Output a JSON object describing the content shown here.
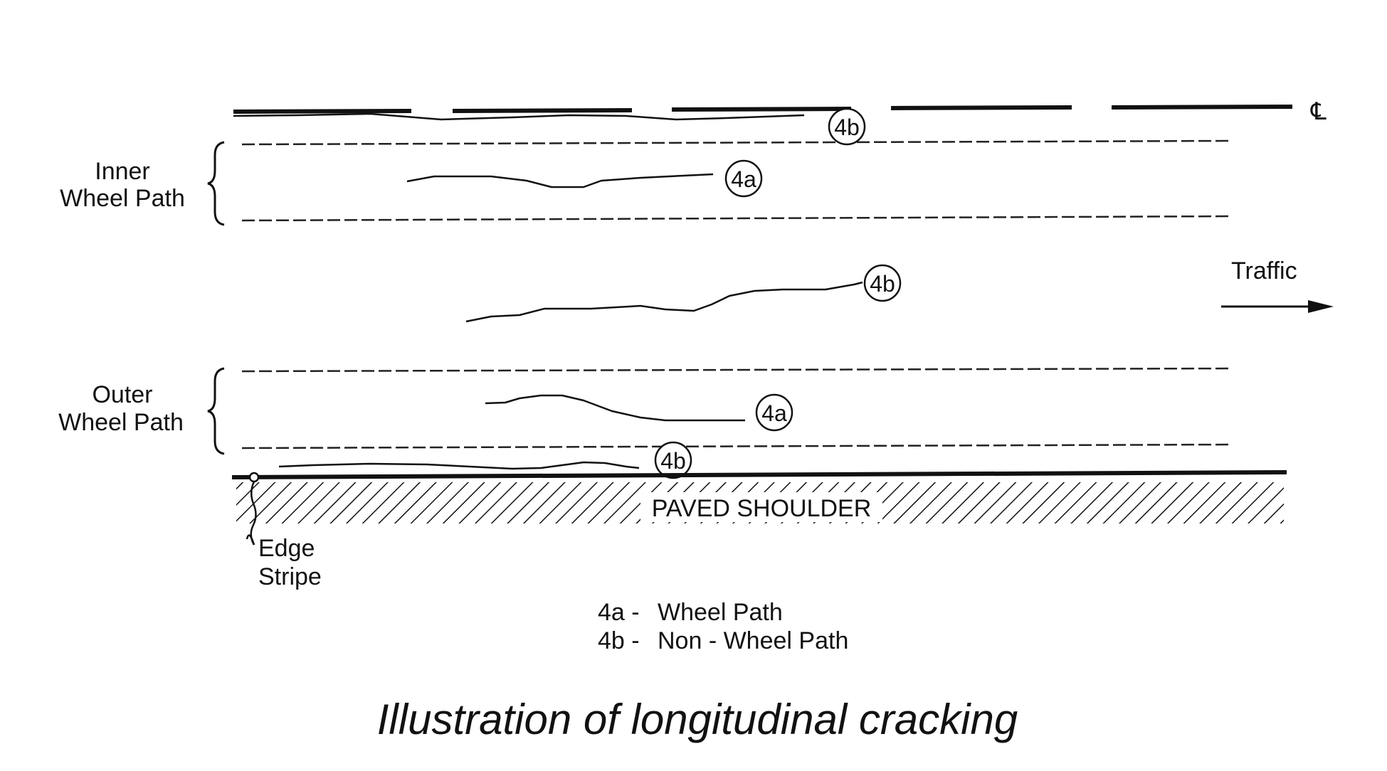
{
  "diagram": {
    "title": "Illustration of longitudinal cracking",
    "centerline_symbol": "℄",
    "traffic_label": "Traffic",
    "inner_wheel_path": [
      "Inner",
      "Wheel Path"
    ],
    "outer_wheel_path": [
      "Outer",
      "Wheel Path"
    ],
    "shoulder_label": "PAVED SHOULDER",
    "edge_stripe": [
      "Edge",
      "Stripe"
    ],
    "crack_markers": {
      "centerline_crack": "4b",
      "inner_path_crack": "4a",
      "mid_lane_crack": "4b",
      "outer_path_crack": "4a",
      "edge_crack": "4b"
    },
    "legend": [
      {
        "code": "4a -",
        "text": "Wheel Path"
      },
      {
        "code": "4b -",
        "text": "Non - Wheel Path"
      }
    ]
  }
}
